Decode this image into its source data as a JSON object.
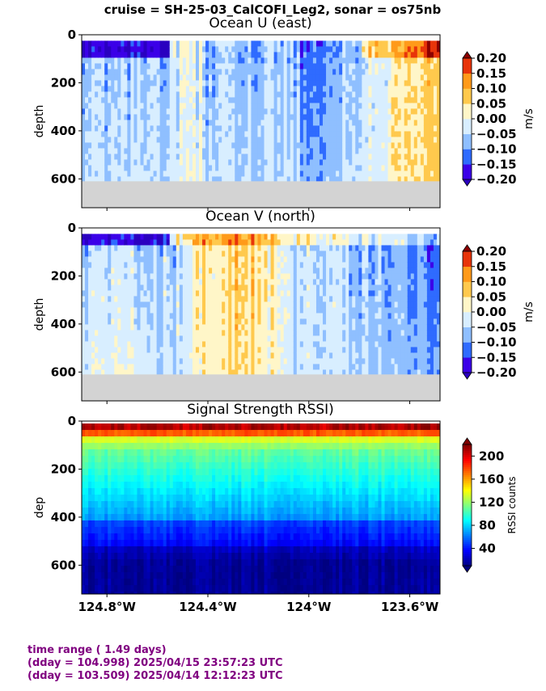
{
  "figure": {
    "title": "cruise = SH-25-03_CalCOFI_Leg2,  sonar = os75nb"
  },
  "footer": {
    "line1": "time range ( 1.49 days)",
    "line2": "(dday = 104.998) 2025/04/15 23:57:23 UTC",
    "line3": "(dday = 103.509) 2025/04/14 12:12:23 UTC"
  },
  "chart_data": [
    {
      "type": "heatmap",
      "title": "Ocean U (east)",
      "ylabel": "depth",
      "ylim": [
        720,
        0
      ],
      "yticks": [
        "0",
        "200",
        "400",
        "600"
      ],
      "xlim": [
        -124.9,
        -123.48
      ],
      "colorbar": {
        "label": "m/s",
        "range": [
          -0.2,
          0.2
        ],
        "levels": [
          -0.2,
          -0.15,
          -0.1,
          -0.05,
          0.0,
          0.05,
          0.1,
          0.15,
          0.2
        ],
        "ticks": [
          "0.20",
          "0.15",
          "0.10",
          "0.05",
          "0.00",
          "−0.05",
          "−0.10",
          "−0.15",
          "−0.20"
        ],
        "colors": [
          "#3b00e8",
          "#2f6bff",
          "#8fbfff",
          "#d8eeff",
          "#fff6c8",
          "#ffc94d",
          "#ff9a1a",
          "#e8340a"
        ],
        "extend_min": "#2a00c0",
        "extend_max": "#8c0000"
      },
      "data_valid_to_depth": 610,
      "no_data_color": "#d3d3d3"
    },
    {
      "type": "heatmap",
      "title": "Ocean V (north)",
      "ylabel": "depth",
      "ylim": [
        720,
        0
      ],
      "yticks": [
        "0",
        "200",
        "400",
        "600"
      ],
      "xlim": [
        -124.9,
        -123.48
      ],
      "colorbar": {
        "label": "m/s",
        "range": [
          -0.2,
          0.2
        ],
        "levels": [
          -0.2,
          -0.15,
          -0.1,
          -0.05,
          0.0,
          0.05,
          0.1,
          0.15,
          0.2
        ],
        "ticks": [
          "0.20",
          "0.15",
          "0.10",
          "0.05",
          "0.00",
          "−0.05",
          "−0.10",
          "−0.15",
          "−0.20"
        ],
        "colors": [
          "#3b00e8",
          "#2f6bff",
          "#8fbfff",
          "#d8eeff",
          "#fff6c8",
          "#ffc94d",
          "#ff9a1a",
          "#e8340a"
        ],
        "extend_min": "#2a00c0",
        "extend_max": "#8c0000"
      },
      "data_valid_to_depth": 610,
      "no_data_color": "#d3d3d3"
    },
    {
      "type": "heatmap",
      "title": "Signal Strength RSSI)",
      "ylabel": "dep",
      "ylim": [
        720,
        0
      ],
      "yticks": [
        "0",
        "200",
        "400",
        "600"
      ],
      "xlim": [
        -124.9,
        -123.48
      ],
      "xticks": [
        "124.8°W",
        "124.4°W",
        "124°W",
        "123.6°W"
      ],
      "xtick_values": [
        -124.8,
        -124.4,
        -124.0,
        -123.6
      ],
      "colorbar": {
        "label": "RSSI counts",
        "range": [
          10,
          220
        ],
        "ticks": [
          "200",
          "160",
          "120",
          "80",
          "40"
        ],
        "tick_values": [
          200,
          160,
          120,
          80,
          40
        ],
        "colormap": "jet"
      }
    }
  ]
}
